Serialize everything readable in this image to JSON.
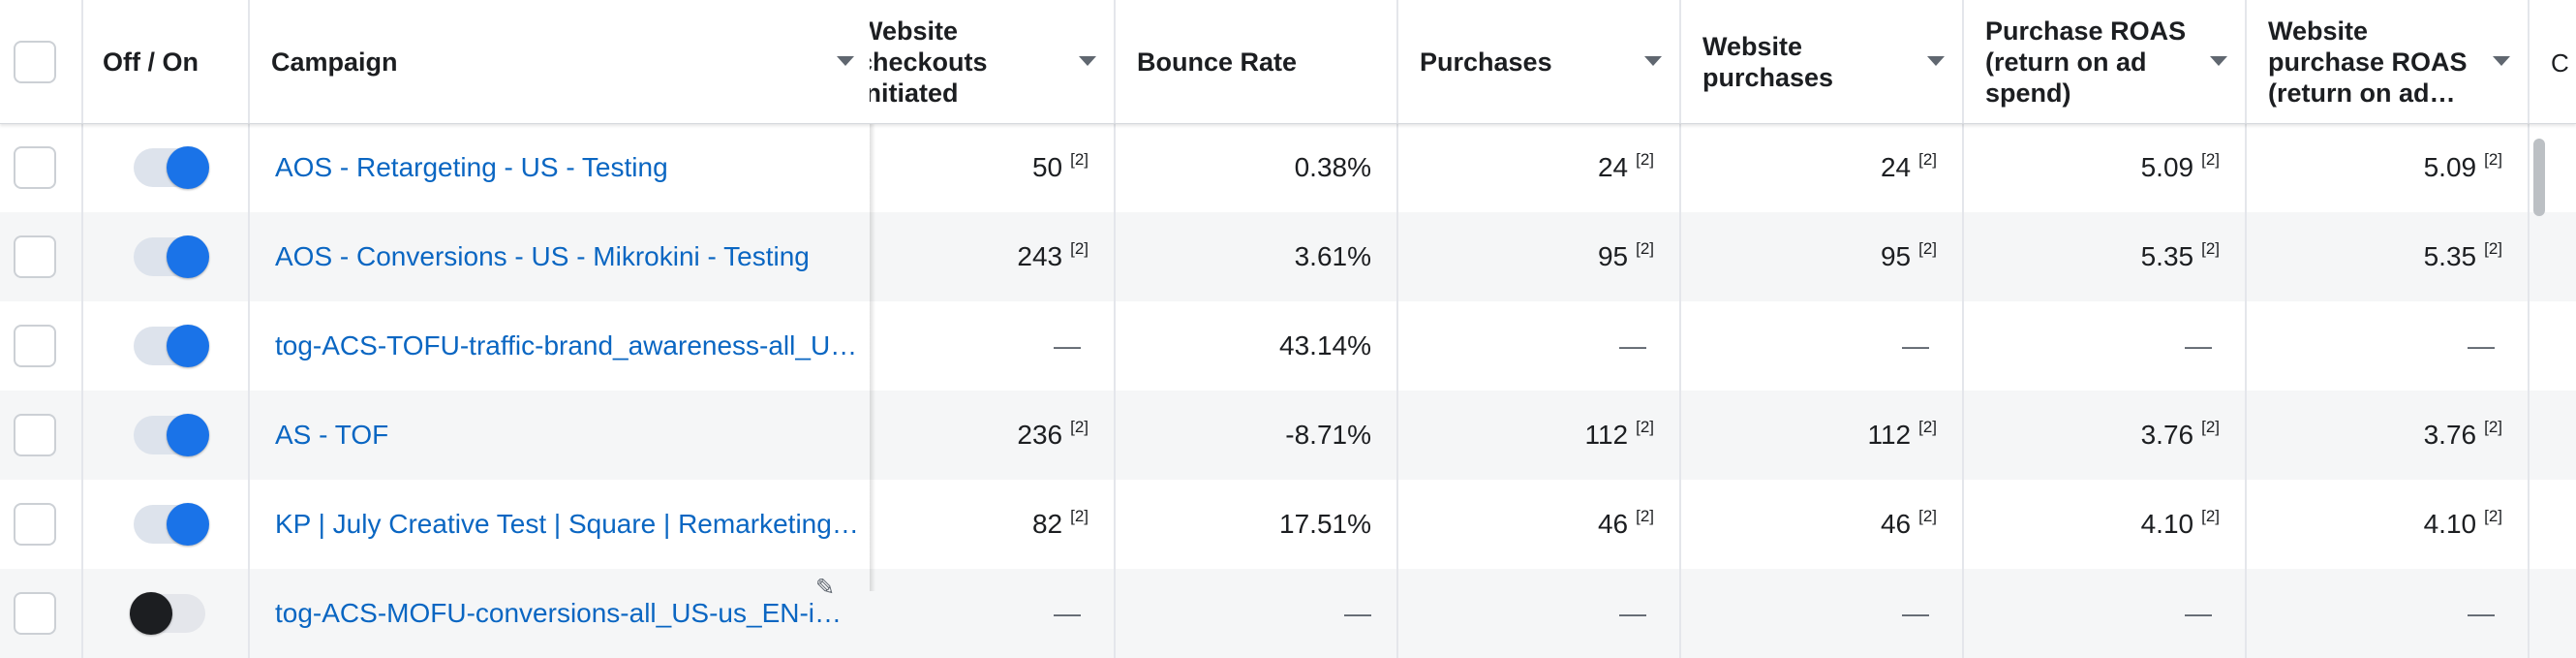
{
  "columns": {
    "select_all": "",
    "off_on": "Off / On",
    "campaign": "Campaign",
    "checkouts": "Website\ncheckouts\ninitiated",
    "bounce": "Bounce Rate",
    "purchases": "Purchases",
    "web_purchases": "Website\npurchases",
    "roas": "Purchase ROAS\n(return on ad\nspend)",
    "web_roas": "Website\npurchase ROAS\n(return on ad…",
    "cutoff": "C"
  },
  "rows": [
    {
      "campaign": "AOS - Retargeting - US - Testing",
      "on": true,
      "checkouts": "50",
      "checkouts_note": "[2]",
      "bounce": "0.38%",
      "purchases": "24",
      "purchases_note": "[2]",
      "web_purchases": "24",
      "web_purchases_note": "[2]",
      "roas": "5.09",
      "roas_note": "[2]",
      "web_roas": "5.09",
      "web_roas_note": "[2]"
    },
    {
      "campaign": "AOS - Conversions - US - Mikrokini - Testing",
      "on": true,
      "checkouts": "243",
      "checkouts_note": "[2]",
      "bounce": "3.61%",
      "purchases": "95",
      "purchases_note": "[2]",
      "web_purchases": "95",
      "web_purchases_note": "[2]",
      "roas": "5.35",
      "roas_note": "[2]",
      "web_roas": "5.35",
      "web_roas_note": "[2]"
    },
    {
      "campaign": "tog-ACS-TOFU-traffic-brand_awareness-all_U…",
      "on": true,
      "checkouts": "—",
      "checkouts_note": "",
      "bounce": "43.14%",
      "purchases": "—",
      "purchases_note": "",
      "web_purchases": "—",
      "web_purchases_note": "",
      "roas": "—",
      "roas_note": "",
      "web_roas": "—",
      "web_roas_note": ""
    },
    {
      "campaign": "AS - TOF",
      "on": true,
      "checkouts": "236",
      "checkouts_note": "[2]",
      "bounce": "-8.71%",
      "purchases": "112",
      "purchases_note": "[2]",
      "web_purchases": "112",
      "web_purchases_note": "[2]",
      "roas": "3.76",
      "roas_note": "[2]",
      "web_roas": "3.76",
      "web_roas_note": "[2]"
    },
    {
      "campaign": "KP | July Creative Test | Square | Remarketing…",
      "on": true,
      "checkouts": "82",
      "checkouts_note": "[2]",
      "bounce": "17.51%",
      "purchases": "46",
      "purchases_note": "[2]",
      "web_purchases": "46",
      "web_purchases_note": "[2]",
      "roas": "4.10",
      "roas_note": "[2]",
      "web_roas": "4.10",
      "web_roas_note": "[2]"
    },
    {
      "campaign": "tog-ACS-MOFU-conversions-all_US-us_EN-i…",
      "on": false,
      "checkouts": "—",
      "checkouts_note": "",
      "bounce": "—",
      "purchases": "—",
      "purchases_note": "",
      "web_purchases": "—",
      "web_purchases_note": "",
      "roas": "—",
      "roas_note": "",
      "web_roas": "—",
      "web_roas_note": ""
    }
  ],
  "icons": {
    "sort": "caret-down-icon",
    "edit": "pencil-icon"
  },
  "colors": {
    "link": "#0a66c2",
    "toggle_on": "#1a73e8"
  }
}
